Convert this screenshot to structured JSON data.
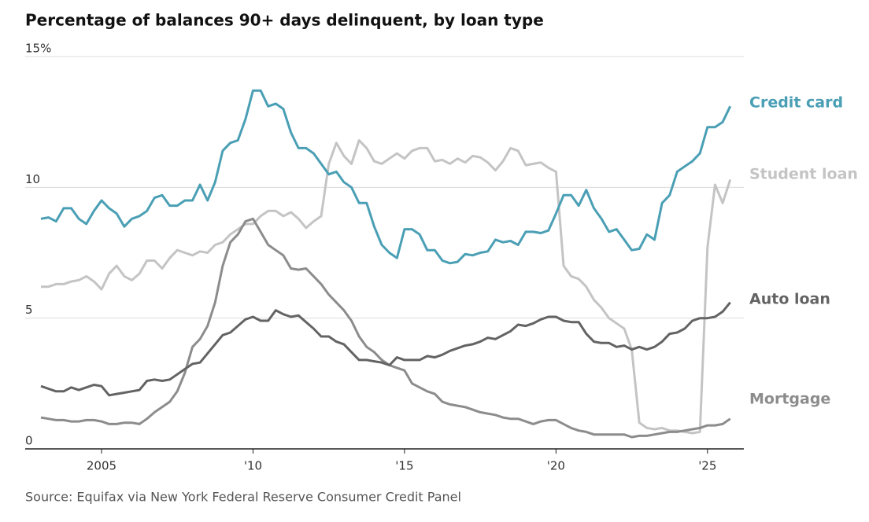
{
  "chart_data": {
    "type": "line",
    "title": "Percentage of balances 90+ days delinquent, by loan type",
    "source": "Source:  Equifax via New York Federal Reserve Consumer Credit Panel",
    "x": [
      2003,
      2003.25,
      2003.5,
      2003.75,
      2004,
      2004.25,
      2004.5,
      2004.75,
      2005,
      2005.25,
      2005.5,
      2005.75,
      2006,
      2006.25,
      2006.5,
      2006.75,
      2007,
      2007.25,
      2007.5,
      2007.75,
      2008,
      2008.25,
      2008.5,
      2008.75,
      2009,
      2009.25,
      2009.5,
      2009.75,
      2010,
      2010.25,
      2010.5,
      2010.75,
      2011,
      2011.25,
      2011.5,
      2011.75,
      2012,
      2012.25,
      2012.5,
      2012.75,
      2013,
      2013.25,
      2013.5,
      2013.75,
      2014,
      2014.25,
      2014.5,
      2014.75,
      2015,
      2015.25,
      2015.5,
      2015.75,
      2016,
      2016.25,
      2016.5,
      2016.75,
      2017,
      2017.25,
      2017.5,
      2017.75,
      2018,
      2018.25,
      2018.5,
      2018.75,
      2019,
      2019.25,
      2019.5,
      2019.75,
      2020,
      2020.25,
      2020.5,
      2020.75,
      2021,
      2021.25,
      2021.5,
      2021.75,
      2022,
      2022.25,
      2022.5,
      2022.75,
      2023,
      2023.25,
      2023.5,
      2023.75,
      2024,
      2024.25,
      2024.5,
      2024.75,
      2025,
      2025.25,
      2025.5,
      2025.75
    ],
    "series": [
      {
        "name": "Credit card",
        "color": "#4a9fb5",
        "values": [
          8.8,
          8.85,
          8.7,
          9.2,
          9.2,
          8.8,
          8.6,
          9.1,
          9.5,
          9.2,
          9.0,
          8.5,
          8.8,
          8.9,
          9.1,
          9.6,
          9.7,
          9.3,
          9.3,
          9.5,
          9.5,
          10.1,
          9.5,
          10.2,
          11.4,
          11.7,
          11.8,
          12.6,
          13.7,
          13.7,
          13.1,
          13.2,
          13.0,
          12.1,
          11.5,
          11.5,
          11.3,
          10.9,
          10.5,
          10.6,
          10.2,
          10.0,
          9.4,
          9.4,
          8.5,
          7.8,
          7.5,
          7.3,
          8.4,
          8.4,
          8.2,
          7.6,
          7.6,
          7.2,
          7.1,
          7.15,
          7.45,
          7.4,
          7.5,
          7.55,
          8.0,
          7.9,
          7.95,
          7.8,
          8.3,
          8.3,
          8.25,
          8.35,
          9.0,
          9.7,
          9.7,
          9.3,
          9.9,
          9.2,
          8.8,
          8.3,
          8.4,
          8.0,
          7.6,
          7.65,
          8.2,
          8.0,
          9.4,
          9.7,
          10.6,
          10.8,
          11.0,
          11.3,
          12.3,
          12.3,
          12.5,
          13.1
        ]
      },
      {
        "name": "Student loan",
        "color": "#c4c4c4",
        "values": [
          6.2,
          6.2,
          6.3,
          6.3,
          6.4,
          6.45,
          6.6,
          6.4,
          6.1,
          6.7,
          7.0,
          6.6,
          6.45,
          6.7,
          7.2,
          7.2,
          6.9,
          7.3,
          7.6,
          7.5,
          7.4,
          7.55,
          7.5,
          7.8,
          7.9,
          8.2,
          8.4,
          8.6,
          8.6,
          8.9,
          9.1,
          9.1,
          8.9,
          9.05,
          8.8,
          8.45,
          8.7,
          8.9,
          10.9,
          11.7,
          11.2,
          10.9,
          11.8,
          11.5,
          11.0,
          10.9,
          11.1,
          11.3,
          11.1,
          11.4,
          11.5,
          11.5,
          11.0,
          11.05,
          10.9,
          11.1,
          10.95,
          11.2,
          11.15,
          10.95,
          10.65,
          11.0,
          11.5,
          11.4,
          10.85,
          10.9,
          10.95,
          10.75,
          10.6,
          7.0,
          6.6,
          6.5,
          6.2,
          5.7,
          5.4,
          5.0,
          4.8,
          4.6,
          3.8,
          1.0,
          0.8,
          0.75,
          0.8,
          0.7,
          0.7,
          0.65,
          0.6,
          0.65,
          7.7,
          10.1,
          9.4,
          10.3
        ]
      },
      {
        "name": "Auto loan",
        "color": "#636363",
        "values": [
          2.4,
          2.3,
          2.2,
          2.2,
          2.35,
          2.25,
          2.35,
          2.45,
          2.4,
          2.05,
          2.1,
          2.15,
          2.2,
          2.25,
          2.6,
          2.65,
          2.6,
          2.65,
          2.85,
          3.05,
          3.25,
          3.3,
          3.65,
          4.0,
          4.35,
          4.45,
          4.7,
          4.95,
          5.05,
          4.9,
          4.9,
          5.3,
          5.15,
          5.05,
          5.1,
          4.85,
          4.6,
          4.3,
          4.3,
          4.1,
          4.0,
          3.7,
          3.4,
          3.4,
          3.35,
          3.3,
          3.2,
          3.5,
          3.4,
          3.4,
          3.4,
          3.55,
          3.5,
          3.6,
          3.75,
          3.85,
          3.95,
          4.0,
          4.1,
          4.25,
          4.2,
          4.35,
          4.5,
          4.75,
          4.7,
          4.8,
          4.95,
          5.05,
          5.05,
          4.9,
          4.85,
          4.85,
          4.4,
          4.1,
          4.05,
          4.05,
          3.9,
          3.95,
          3.8,
          3.9,
          3.8,
          3.9,
          4.1,
          4.4,
          4.45,
          4.6,
          4.9,
          5.0,
          5.0,
          5.05,
          5.25,
          5.6
        ]
      },
      {
        "name": "Mortgage",
        "color": "#8c8c8c",
        "values": [
          1.2,
          1.15,
          1.1,
          1.1,
          1.05,
          1.05,
          1.1,
          1.1,
          1.05,
          0.95,
          0.95,
          1.0,
          1.0,
          0.95,
          1.15,
          1.4,
          1.6,
          1.8,
          2.2,
          2.9,
          3.9,
          4.2,
          4.7,
          5.6,
          7.0,
          7.9,
          8.2,
          8.7,
          8.8,
          8.3,
          7.8,
          7.6,
          7.4,
          6.9,
          6.85,
          6.9,
          6.6,
          6.3,
          5.9,
          5.6,
          5.3,
          4.9,
          4.3,
          3.9,
          3.7,
          3.4,
          3.2,
          3.1,
          3.0,
          2.5,
          2.35,
          2.2,
          2.1,
          1.8,
          1.7,
          1.65,
          1.6,
          1.5,
          1.4,
          1.35,
          1.3,
          1.2,
          1.15,
          1.15,
          1.05,
          0.95,
          1.05,
          1.1,
          1.1,
          0.95,
          0.8,
          0.7,
          0.65,
          0.55,
          0.55,
          0.55,
          0.55,
          0.55,
          0.45,
          0.5,
          0.5,
          0.55,
          0.6,
          0.65,
          0.65,
          0.7,
          0.75,
          0.8,
          0.9,
          0.9,
          0.95,
          1.15
        ]
      }
    ],
    "xlim": [
      2003,
      2026.2
    ],
    "xticks": [
      2005,
      {
        "value": 2010,
        "label": "'10"
      },
      {
        "value": 2015,
        "label": "'15"
      },
      {
        "value": 2020,
        "label": "'20"
      },
      {
        "value": 2025,
        "label": "'25"
      }
    ],
    "ylim": [
      0,
      15
    ],
    "yticks": [
      0,
      5,
      10,
      {
        "value": 15,
        "label": "15%"
      }
    ],
    "grid": true
  }
}
